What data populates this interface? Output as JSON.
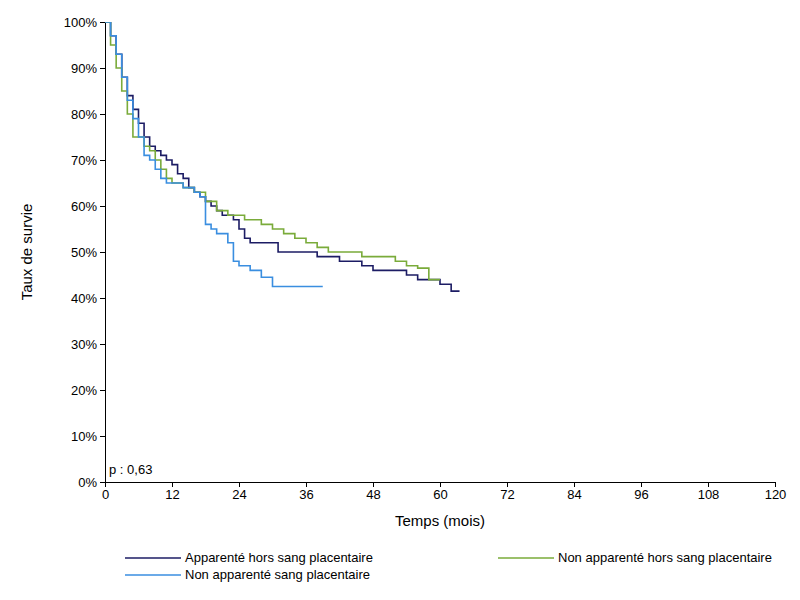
{
  "chart_data": {
    "type": "line",
    "x_label": "Temps (mois)",
    "y_label": "Taux de survie",
    "annotation": "p : 0,63",
    "xlim": [
      0,
      120
    ],
    "xticks": [
      0,
      12,
      24,
      36,
      48,
      60,
      72,
      84,
      96,
      108,
      120
    ],
    "ylim": [
      0,
      100
    ],
    "yticks": [
      {
        "value": 0,
        "label": "0%"
      },
      {
        "value": 10,
        "label": "10%"
      },
      {
        "value": 20,
        "label": "20%"
      },
      {
        "value": 30,
        "label": "30%"
      },
      {
        "value": 40,
        "label": "40%"
      },
      {
        "value": 50,
        "label": "50%"
      },
      {
        "value": 60,
        "label": "60%"
      },
      {
        "value": 70,
        "label": "70%"
      },
      {
        "value": 80,
        "label": "80%"
      },
      {
        "value": 90,
        "label": "90%"
      },
      {
        "value": 100,
        "label": "100%"
      }
    ],
    "grid": false,
    "legend": "bottom",
    "line_style": "step",
    "series": [
      {
        "name": "Apparenté hors sang placentaire",
        "color": "#1c1c64",
        "x": [
          0,
          1,
          2,
          3,
          4,
          5,
          6,
          7,
          8,
          9,
          10,
          11,
          12,
          13,
          14,
          15,
          16,
          17,
          18,
          19,
          20,
          21,
          22,
          23,
          24,
          25,
          26,
          28,
          30,
          31,
          32,
          36,
          38,
          40,
          42,
          44,
          46,
          48,
          50,
          52,
          54,
          56,
          58,
          60,
          62,
          63.5
        ],
        "values": [
          100,
          97,
          93,
          88,
          84,
          81,
          78,
          75,
          73,
          72,
          71,
          70,
          69,
          67,
          66,
          64,
          63,
          62,
          61,
          60,
          59,
          58,
          58,
          57,
          55,
          53,
          52,
          52,
          52,
          50,
          50,
          50,
          49,
          49,
          48,
          48,
          47,
          46,
          46,
          46,
          45,
          44,
          44,
          43,
          41.5,
          41.5
        ]
      },
      {
        "name": "Non apparenté hors sang placentaire",
        "color": "#7aab3a",
        "x": [
          0,
          1,
          2,
          3,
          4,
          5,
          7,
          8,
          9,
          10,
          11,
          12,
          14,
          16,
          18,
          20,
          22,
          24,
          25,
          28,
          30,
          32,
          34,
          36,
          38,
          40,
          44,
          46,
          50,
          52,
          54,
          56,
          58,
          60
        ],
        "values": [
          100,
          95,
          90,
          85,
          80,
          75,
          73,
          72,
          70,
          68,
          66,
          65,
          64,
          63,
          61,
          59,
          58,
          58,
          57,
          56,
          55,
          54,
          53,
          52,
          51,
          50,
          50,
          49,
          49,
          48,
          47,
          46.5,
          44,
          44
        ]
      },
      {
        "name": "Non apparenté sang placentaire",
        "color": "#3a8ee0",
        "x": [
          0,
          1,
          2,
          3,
          4,
          5,
          6,
          7,
          8,
          9,
          10,
          11,
          14,
          16,
          17,
          18,
          19,
          20,
          22,
          23,
          24,
          26,
          28,
          30,
          39
        ],
        "values": [
          100,
          97,
          93,
          88,
          83,
          79,
          75,
          71,
          70,
          68,
          66,
          65,
          64,
          63,
          62,
          56,
          55,
          54,
          52,
          48,
          47,
          46,
          44.5,
          42.5,
          42.5
        ]
      }
    ]
  }
}
